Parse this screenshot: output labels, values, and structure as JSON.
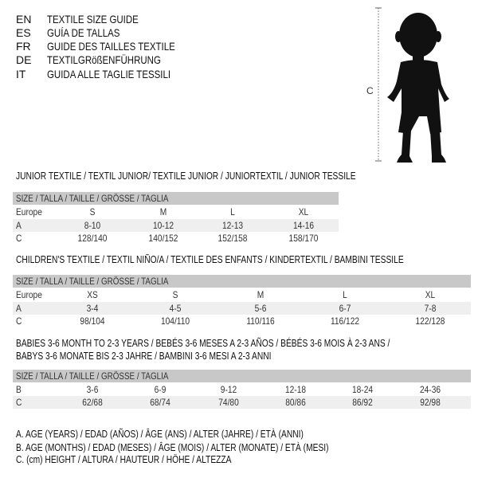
{
  "header": {
    "languages": [
      {
        "code": "EN",
        "title": "TEXTILE SIZE GUIDE"
      },
      {
        "code": "ES",
        "title": "GUÍA DE TALLAS"
      },
      {
        "code": "FR",
        "title": "GUIDE DES TAILLES TEXTILE"
      },
      {
        "code": "DE",
        "title": "TEXTILGRößENFÜHRUNG"
      },
      {
        "code": "IT",
        "title": "GUIDA ALLE TAGLIE TESSILI"
      }
    ]
  },
  "figure": {
    "measure_label": "C",
    "icon": "child-silhouette-icon"
  },
  "sections": [
    {
      "title": "JUNIOR TEXTILE / TEXTIL JUNIOR/ TEXTILE JUNIOR / JUNIORTEXTIL / JUNIOR TESSILE",
      "header": "SIZE / TALLA / TAILLE / GRÖSSE / TAGLIA",
      "rows": [
        {
          "label": "Europe",
          "values": [
            "S",
            "M",
            "L",
            "XL"
          ]
        },
        {
          "label": "A",
          "values": [
            "8-10",
            "10-12",
            "12-13",
            "14-16"
          ]
        },
        {
          "label": "C",
          "values": [
            "128/140",
            "140/152",
            "152/158",
            "158/170"
          ]
        }
      ]
    },
    {
      "title": "CHILDREN'S TEXTILE / TEXTIL NIÑO/A / TEXTILE DES ENFANTS / KINDERTEXTIL / BAMBINI TESSILE",
      "header": "SIZE / TALLA / TAILLE / GRÖSSE / TAGLIA",
      "rows": [
        {
          "label": "Europe",
          "values": [
            "XS",
            "S",
            "M",
            "L",
            "XL"
          ]
        },
        {
          "label": "A",
          "values": [
            "3-4",
            "4-5",
            "5-6",
            "6-7",
            "7-8"
          ]
        },
        {
          "label": "C",
          "values": [
            "98/104",
            "104/110",
            "110/116",
            "116/122",
            "122/128"
          ]
        }
      ]
    },
    {
      "title": "BABIES 3-6 MONTH TO 2-3 YEARS / BEBÉS 3-6 MESES A 2-3 AÑOS / BÉBÉS 3-6 MOIS À 2-3 ANS /",
      "title2": "BABYS 3-6 MONATE BIS 2-3 JAHRE / BAMBINI 3-6 MESI A 2-3 ANNI",
      "header": "SIZE / TALLA / TAILLE / GRÖSSE / TAGLIA",
      "rows": [
        {
          "label": "B",
          "values": [
            "3-6",
            "6-9",
            "9-12",
            "12-18",
            "18-24",
            "24-36"
          ]
        },
        {
          "label": "C",
          "values": [
            "62/68",
            "68/74",
            "74/80",
            "80/86",
            "86/92",
            "92/98"
          ]
        }
      ]
    }
  ],
  "legend": [
    "A. AGE (YEARS) / EDAD (AÑOS) / ÂGE (ANS) / ALTER (JAHRE) / ETÀ (ANNI)",
    "B. AGE (MONTHS) / EDAD (MESES) / ÂGE (MOIS) / ALTER (MONATE) / ETÀ (MESI)",
    "C. (cm) HEIGHT / ALTURA / HAUTEUR / HÖHE / ALTEZZA"
  ]
}
